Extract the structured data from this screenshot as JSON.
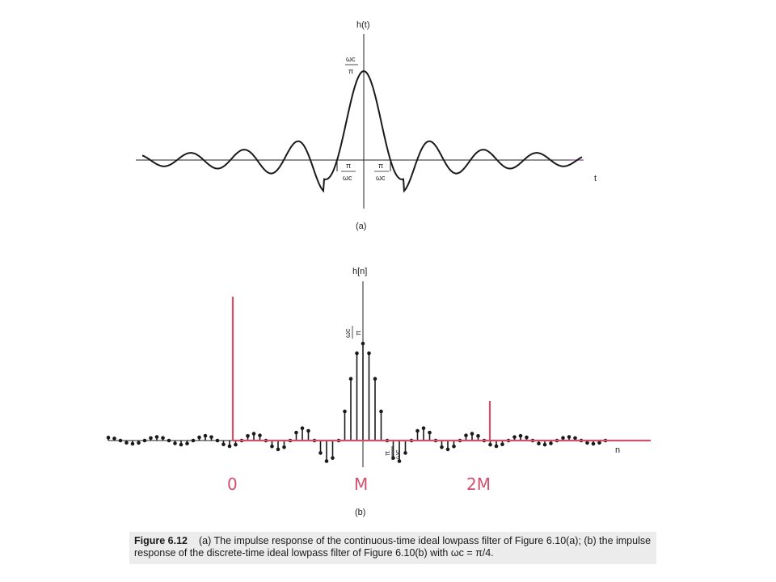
{
  "panel_a": {
    "ylabel": "h(t)",
    "xlabel": "t",
    "peak_num": "ωc",
    "peak_den": "π",
    "zero_left_num": "π",
    "zero_left_den": "ωc",
    "zero_right_num": "π",
    "zero_right_den": "ωc",
    "sublabel": "(a)"
  },
  "panel_b": {
    "ylabel": "h[n]",
    "xlabel": "n",
    "peak_num": "ωc",
    "peak_den": "π",
    "tick_num": "π",
    "tick_den": "ωc",
    "sublabel": "(b)"
  },
  "annotations": {
    "label_0": "0",
    "label_M": "M",
    "label_2M": "2M",
    "color": "#d2506e"
  },
  "caption": {
    "label": "Figure 6.12",
    "text": "(a) The impulse response of the continuous-time ideal lowpass filter of Figure 6.10(a); (b) the impulse response of the discrete-time ideal lowpass filter of Figure 6.10(b) with ωc = π/4."
  },
  "chart_data": [
    {
      "type": "line",
      "title": "",
      "function": "sin(ωc t)/(π t)",
      "peak_value": "ωc/π",
      "first_zeros": [
        "-π/ωc",
        "π/ωc"
      ],
      "xlabel": "t",
      "ylabel": "h(t)"
    },
    {
      "type": "scatter",
      "title": "",
      "function": "sin(ωc n)/(π n)",
      "wc": "π/4",
      "n_range": [
        -21,
        21
      ],
      "peak_value": "ωc/π",
      "xlabel": "n",
      "ylabel": "h[n]"
    }
  ]
}
